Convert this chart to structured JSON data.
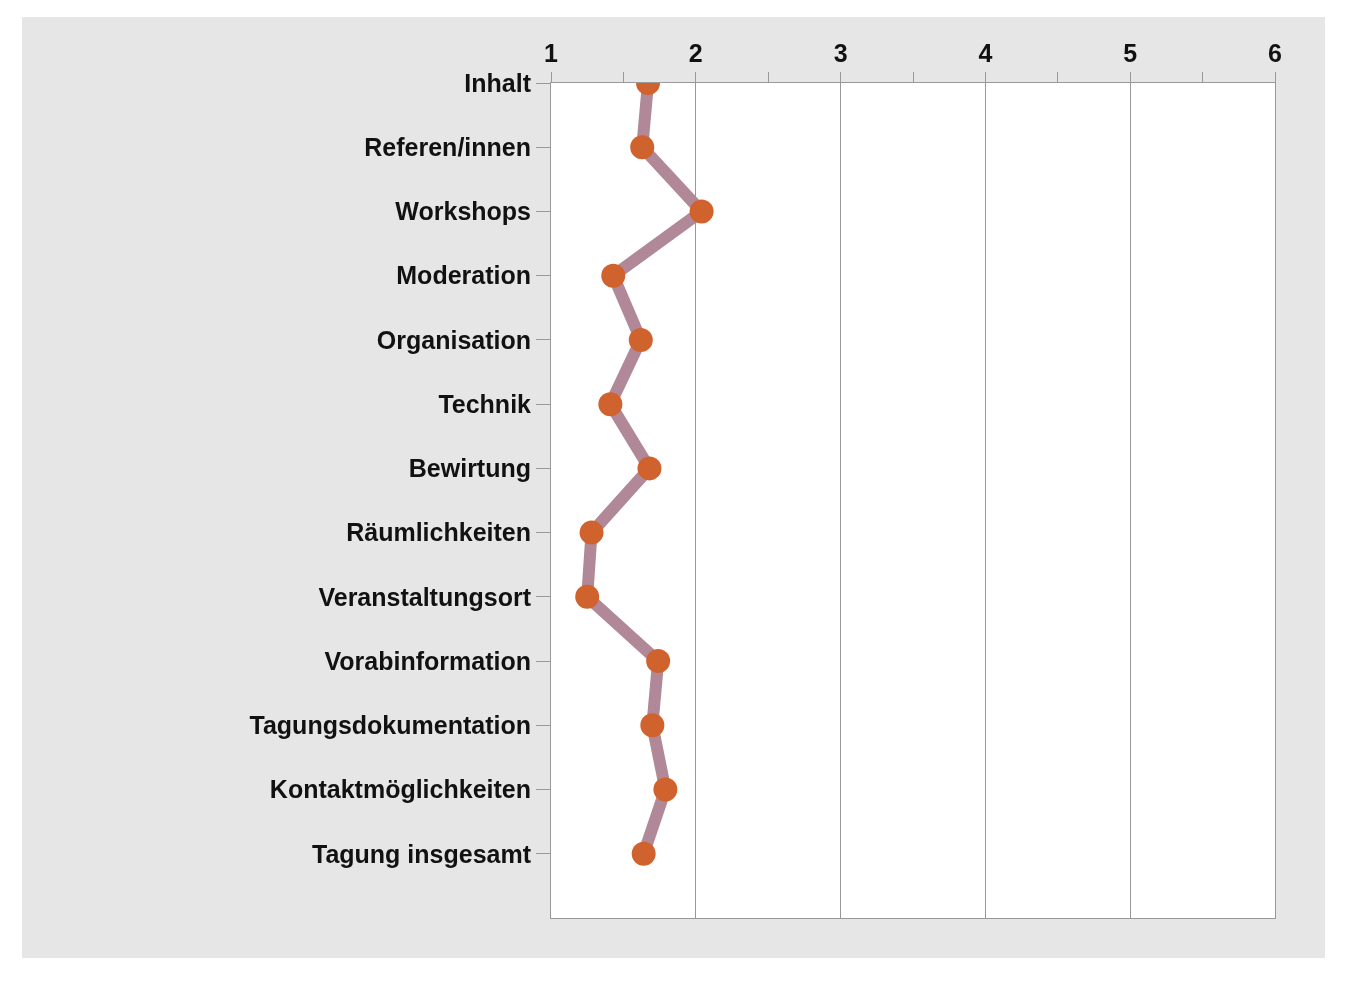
{
  "chart_data": {
    "type": "line",
    "orientation": "horizontal",
    "categories": [
      "Inhalt",
      "Referen/innen",
      "Workshops",
      "Moderation",
      "Organisation",
      "Technik",
      "Bewirtung",
      "Räumlichkeiten",
      "Veranstaltungsort",
      "Vorabinformation",
      "Tagungsdokumentation",
      "Kontaktmöglichkeiten",
      "Tagung insgesamt"
    ],
    "series": [
      {
        "color": "#b08898",
        "colors": [
          "#d0622e",
          "#d0622e",
          "#d0622e",
          "#d0622e",
          "#d0622e",
          "#d0622e",
          "#d0622e",
          "#d0622e",
          "#d0622e",
          "#d0622e",
          "#d0622e",
          "#d0622e",
          "#d0622e"
        ],
        "values": [
          1.67,
          1.63,
          2.04,
          1.43,
          1.62,
          1.41,
          1.68,
          1.28,
          1.25,
          1.74,
          1.7,
          1.79,
          1.64
        ]
      }
    ],
    "marker": "circle",
    "xlim": [
      1,
      6
    ],
    "xticks": [
      1,
      {
        "value": 1.5,
        "label": null
      },
      2,
      {
        "value": 2.5,
        "label": null
      },
      3,
      {
        "value": 3.5,
        "label": null
      },
      4,
      {
        "value": 4.5,
        "label": null
      },
      5,
      {
        "value": 5.5,
        "label": null
      },
      6
    ],
    "grid": "x"
  }
}
